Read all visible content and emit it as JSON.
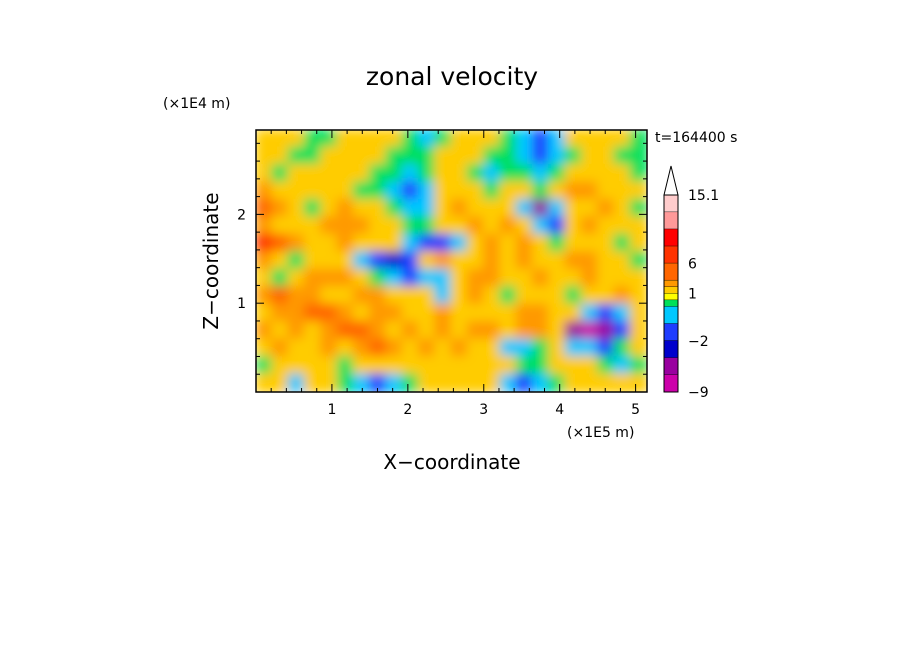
{
  "chart_data": {
    "type": "heatmap",
    "title": "zonal velocity",
    "xlabel": "X−coordinate",
    "ylabel": "Z−coordinate",
    "x_scale_label": "(×1E5 m)",
    "y_scale_label": "(×1E4 m)",
    "time_label": "t=164400 s",
    "xlim": [
      0,
      5.15
    ],
    "ylim": [
      0,
      2.95
    ],
    "x_ticks": [
      "1",
      "2",
      "3",
      "4",
      "5"
    ],
    "y_ticks": [
      "1",
      "2"
    ],
    "colorbar": {
      "labels": [
        "15.1",
        "6",
        "1",
        "−2",
        "−9"
      ],
      "levels": [
        -12,
        -9,
        -6,
        -4,
        -2,
        -1,
        -0.5,
        0.5,
        1,
        2,
        4,
        6,
        9,
        12,
        15.1
      ],
      "colors": [
        "#ff00cc",
        "#cc00aa",
        "#99009f",
        "#0000cc",
        "#1f3dff",
        "#00c8ff",
        "#00e05a",
        "#ffff00",
        "#ffcc00",
        "#ff9900",
        "#ff6600",
        "#ff3300",
        "#ff0000",
        "#ff9999",
        "#ffcccc"
      ]
    },
    "series": [
      {
        "values": [
          [
            1,
            1,
            1,
            0,
            0,
            1,
            1,
            1,
            1,
            0,
            -1,
            0,
            1,
            1,
            1,
            0,
            -1,
            -2,
            -1,
            1,
            1,
            1,
            1,
            0
          ],
          [
            1,
            1,
            0,
            0,
            1,
            1,
            1,
            1,
            0,
            0,
            0,
            1,
            1,
            1,
            0,
            0,
            -1,
            -2,
            -1,
            0,
            1,
            1,
            0,
            0
          ],
          [
            1,
            0,
            1,
            1,
            1,
            1,
            1,
            0,
            0,
            -1,
            0,
            1,
            1,
            0,
            -1,
            0,
            0,
            -1,
            0,
            1,
            1,
            1,
            1,
            0
          ],
          [
            2,
            1,
            1,
            1,
            1,
            1,
            0,
            0,
            -1,
            -2,
            -1,
            1,
            1,
            1,
            0,
            1,
            1,
            0,
            1,
            2,
            2,
            1,
            1,
            1
          ],
          [
            4,
            2,
            1,
            0,
            1,
            2,
            1,
            1,
            0,
            -1,
            -1,
            1,
            2,
            1,
            1,
            1,
            -1,
            -6,
            -1,
            1,
            1,
            2,
            1,
            0
          ],
          [
            2,
            1,
            1,
            1,
            2,
            3,
            2,
            1,
            1,
            0,
            0,
            1,
            1,
            2,
            1,
            2,
            1,
            -1,
            -2,
            1,
            2,
            1,
            1,
            1
          ],
          [
            6,
            4,
            2,
            1,
            1,
            2,
            1,
            1,
            1,
            -1,
            -2,
            -2,
            -1,
            1,
            2,
            1,
            2,
            1,
            0,
            1,
            1,
            1,
            0,
            1
          ],
          [
            2,
            1,
            0,
            1,
            1,
            1,
            -1,
            -2,
            -4,
            -2,
            1,
            2,
            1,
            1,
            2,
            1,
            2,
            1,
            1,
            2,
            2,
            1,
            1,
            0
          ],
          [
            1,
            0,
            1,
            2,
            2,
            2,
            1,
            0,
            -1,
            -2,
            -1,
            -1,
            1,
            2,
            2,
            1,
            1,
            2,
            1,
            1,
            2,
            1,
            1,
            1
          ],
          [
            3,
            4,
            3,
            2,
            1,
            1,
            2,
            2,
            1,
            1,
            1,
            -1,
            1,
            2,
            1,
            0,
            1,
            1,
            1,
            0,
            1,
            1,
            2,
            1
          ],
          [
            1,
            2,
            2,
            4,
            4,
            2,
            1,
            2,
            2,
            1,
            1,
            2,
            1,
            1,
            1,
            1,
            2,
            2,
            1,
            1,
            -1,
            -2,
            -1,
            1
          ],
          [
            2,
            1,
            2,
            1,
            2,
            4,
            4,
            2,
            1,
            2,
            1,
            2,
            1,
            2,
            2,
            1,
            2,
            2,
            1,
            -6,
            -9,
            -6,
            -2,
            1
          ],
          [
            1,
            2,
            1,
            1,
            2,
            1,
            2,
            4,
            2,
            1,
            2,
            1,
            2,
            1,
            1,
            -1,
            -1,
            0,
            1,
            -1,
            -1,
            -2,
            0,
            1
          ],
          [
            0,
            1,
            1,
            1,
            1,
            0,
            1,
            1,
            1,
            1,
            1,
            1,
            1,
            1,
            1,
            1,
            0,
            0,
            1,
            1,
            1,
            0,
            -1,
            0
          ],
          [
            1,
            1,
            -1,
            1,
            1,
            0,
            -1,
            -2,
            -1,
            0,
            1,
            1,
            1,
            1,
            1,
            -1,
            -2,
            -1,
            0,
            1,
            1,
            1,
            1,
            1
          ]
        ]
      }
    ]
  }
}
